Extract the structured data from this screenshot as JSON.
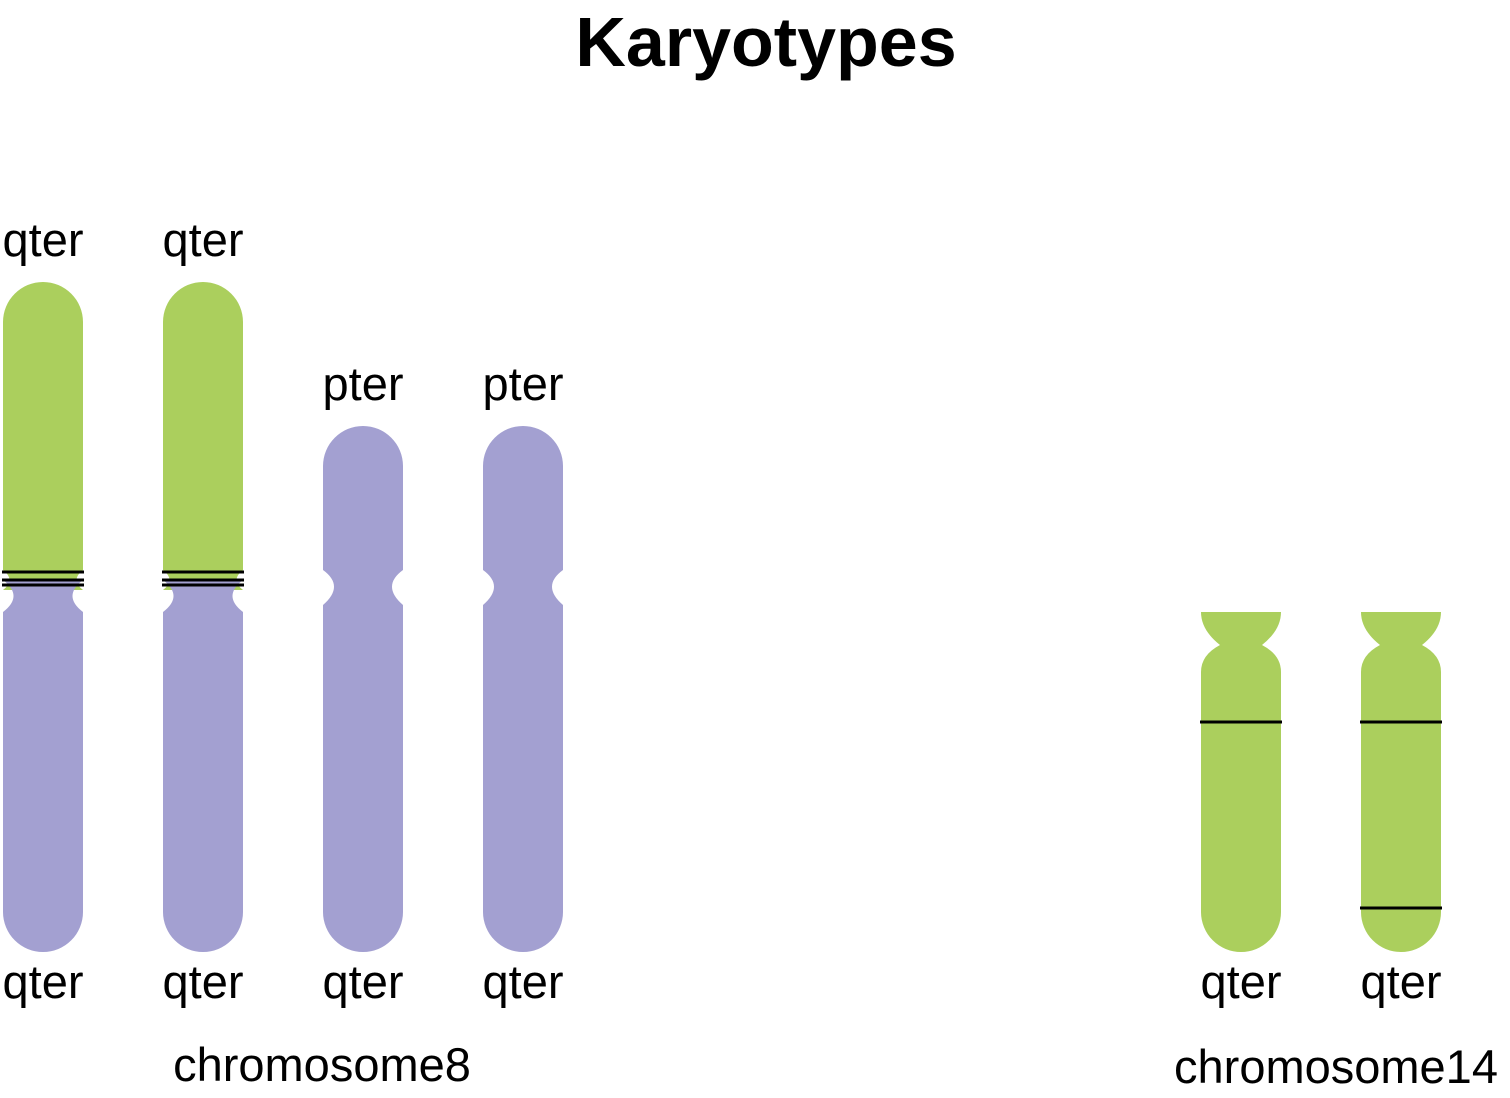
{
  "title": "Karyotypes",
  "colors": {
    "chromosome8": "#a3a0d1",
    "chromosome14": "#abcf5d",
    "band": "#000000"
  },
  "groups": [
    {
      "label": "chromosome8",
      "chromosomes": [
        {
          "top_label": "qter",
          "bottom_label": "qter",
          "translocated": true
        },
        {
          "top_label": "qter",
          "bottom_label": "qter",
          "translocated": true
        },
        {
          "top_label": "pter",
          "bottom_label": "qter",
          "translocated": false
        },
        {
          "top_label": "pter",
          "bottom_label": "qter",
          "translocated": false
        }
      ]
    },
    {
      "label": "chromosome14",
      "chromosomes": [
        {
          "top_label": "",
          "bottom_label": "qter"
        },
        {
          "top_label": "",
          "bottom_label": "qter"
        }
      ]
    }
  ]
}
